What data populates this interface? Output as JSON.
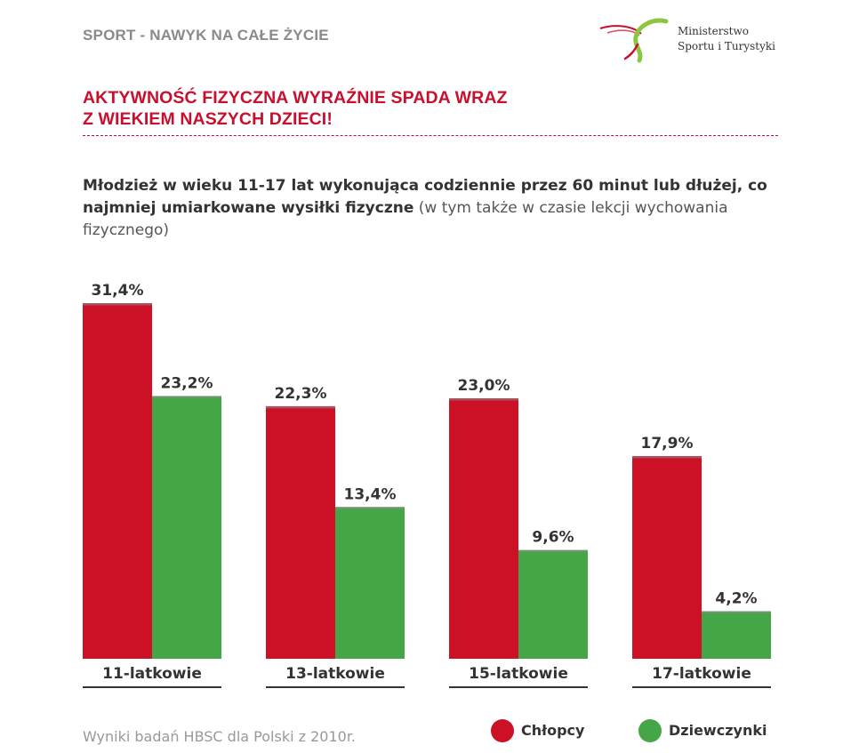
{
  "header": {
    "section_title": "SPORT - NAWYK NA CAŁE ŻYCIE",
    "logo_line1": "Ministerstwo",
    "logo_line2": "Sportu i Turystyki"
  },
  "headline": {
    "line1": "AKTYWNOŚĆ FIZYCZNA WYRAŹNIE SPADA WRAZ",
    "line2": "Z WIEKIEM NASZYCH DZIECI!"
  },
  "subtitle": {
    "bold_part": "Młodzież w wieku 11-17 lat wykonująca codziennie przez 60 minut lub dłużej, co najmniej umiarkowane wysiłki fizyczne",
    "normal_part": " (w tym także w czasie lekcji wychowania fizycznego)"
  },
  "chart_data": {
    "type": "bar",
    "categories": [
      "11-latkowie",
      "13-latkowie",
      "15-latkowie",
      "17-latkowie"
    ],
    "series": [
      {
        "name": "Chłopcy",
        "values": [
          31.4,
          22.3,
          23.0,
          17.9
        ],
        "labels": [
          "31,4%",
          "22,3%",
          "23,0%",
          "17,9%"
        ],
        "color": "#cc1126"
      },
      {
        "name": "Dziewczynki",
        "values": [
          23.2,
          13.4,
          9.6,
          4.2
        ],
        "labels": [
          "23,2%",
          "13,4%",
          "9,6%",
          "4,2%"
        ],
        "color": "#44a646"
      }
    ],
    "ylim": [
      0,
      31.4
    ],
    "grid": false,
    "legend": "bottom-right"
  },
  "legend": {
    "boys": "Chłopcy",
    "girls": "Dziewczynki",
    "boys_color": "#cc1126",
    "girls_color": "#44a646"
  },
  "source_note": "Wyniki badań HBSC dla Polski z 2010r."
}
